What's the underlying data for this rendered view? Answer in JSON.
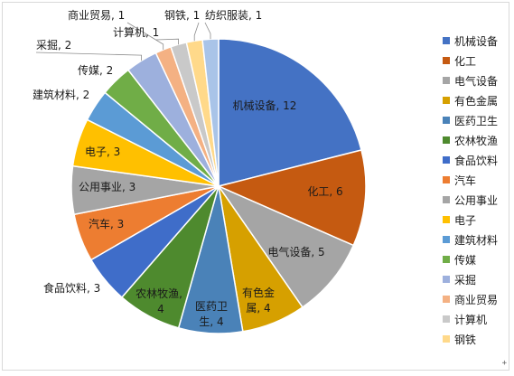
{
  "chart_data": {
    "type": "pie",
    "title": "",
    "start_angle_deg": 0,
    "direction": "clockwise",
    "slices": [
      {
        "label": "机械设备",
        "value": 12,
        "color": "#4472C4"
      },
      {
        "label": "化工",
        "value": 6,
        "color": "#C55A11"
      },
      {
        "label": "电气设备",
        "value": 5,
        "color": "#A5A5A5"
      },
      {
        "label": "有色金属",
        "value": 4,
        "color": "#D6A000"
      },
      {
        "label": "医药卫生",
        "value": 4,
        "color": "#4A82B8"
      },
      {
        "label": "农林牧渔",
        "value": 4,
        "color": "#4E8A2E"
      },
      {
        "label": "食品饮料",
        "value": 3,
        "color": "#3F6DC9"
      },
      {
        "label": "汽车",
        "value": 3,
        "color": "#ED7D31"
      },
      {
        "label": "公用事业",
        "value": 3,
        "color": "#A5A5A5"
      },
      {
        "label": "电子",
        "value": 3,
        "color": "#FFC000"
      },
      {
        "label": "建筑材料",
        "value": 2,
        "color": "#5B9BD5"
      },
      {
        "label": "传媒",
        "value": 2,
        "color": "#70AD47"
      },
      {
        "label": "采掘",
        "value": 2,
        "color": "#9DB0DD"
      },
      {
        "label": "商业贸易",
        "value": 1,
        "color": "#F4B183"
      },
      {
        "label": "计算机",
        "value": 1,
        "color": "#C9C9C9"
      },
      {
        "label": "钢铁",
        "value": 1,
        "color": "#FFD98A"
      },
      {
        "label": "纺织服装",
        "value": 1,
        "color": "#A9C4E8"
      }
    ],
    "data_labels": [
      "机械设备, 12",
      "化工, 6",
      "电气设备, 5",
      "有色金属, 4",
      "医药卫生, 4",
      "农林牧渔, 4",
      "食品饮料, 3",
      "汽车, 3",
      "公用事业, 3",
      "电子, 3",
      "建筑材料, 2",
      "传媒, 2",
      "采掘, 2",
      "商业贸易, 1",
      "计算机, 1",
      "钢铁, 1",
      "纺织服装, 1"
    ],
    "legend": {
      "position": "right",
      "entries": [
        "机械设备",
        "化工",
        "电气设备",
        "有色金属",
        "医药卫生",
        "农林牧渔",
        "食品饮料",
        "汽车",
        "公用事业",
        "电子",
        "建筑材料",
        "传媒",
        "采掘",
        "商业贸易",
        "计算机",
        "钢铁"
      ]
    }
  }
}
